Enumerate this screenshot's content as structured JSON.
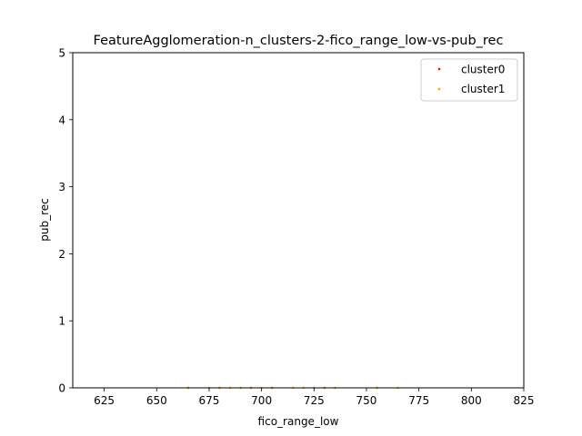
{
  "chart_data": {
    "type": "scatter",
    "title": "FeatureAgglomeration-n_clusters-2-fico_range_low-vs-pub_rec",
    "xlabel": "fico_range_low",
    "ylabel": "pub_rec",
    "xlim": [
      610,
      825
    ],
    "ylim": [
      0,
      5
    ],
    "xticks": [
      625,
      650,
      675,
      700,
      725,
      750,
      775,
      800,
      825
    ],
    "yticks": [
      0,
      1,
      2,
      3,
      4,
      5
    ],
    "xtick_labels": [
      "625",
      "650",
      "675",
      "700",
      "725",
      "750",
      "775",
      "800",
      "825"
    ],
    "ytick_labels": [
      "0",
      "1",
      "2",
      "3",
      "4",
      "5"
    ],
    "grid": false,
    "legend_position": "top-right",
    "series": [
      {
        "name": "cluster0",
        "color": "#ff0000",
        "points": [
          [
            665,
            0
          ],
          [
            680,
            0
          ],
          [
            695,
            0
          ],
          [
            705,
            0
          ],
          [
            730,
            0
          ],
          [
            755,
            0
          ]
        ]
      },
      {
        "name": "cluster1",
        "color": "#ffa500",
        "points": [
          [
            665,
            0
          ],
          [
            675,
            0
          ],
          [
            680,
            0
          ],
          [
            685,
            0
          ],
          [
            690,
            0
          ],
          [
            695,
            0
          ],
          [
            700,
            0
          ],
          [
            705,
            0
          ],
          [
            715,
            0
          ],
          [
            720,
            0
          ],
          [
            725,
            0
          ],
          [
            730,
            0
          ],
          [
            735,
            0
          ],
          [
            755,
            0
          ],
          [
            765,
            0
          ]
        ]
      }
    ]
  }
}
